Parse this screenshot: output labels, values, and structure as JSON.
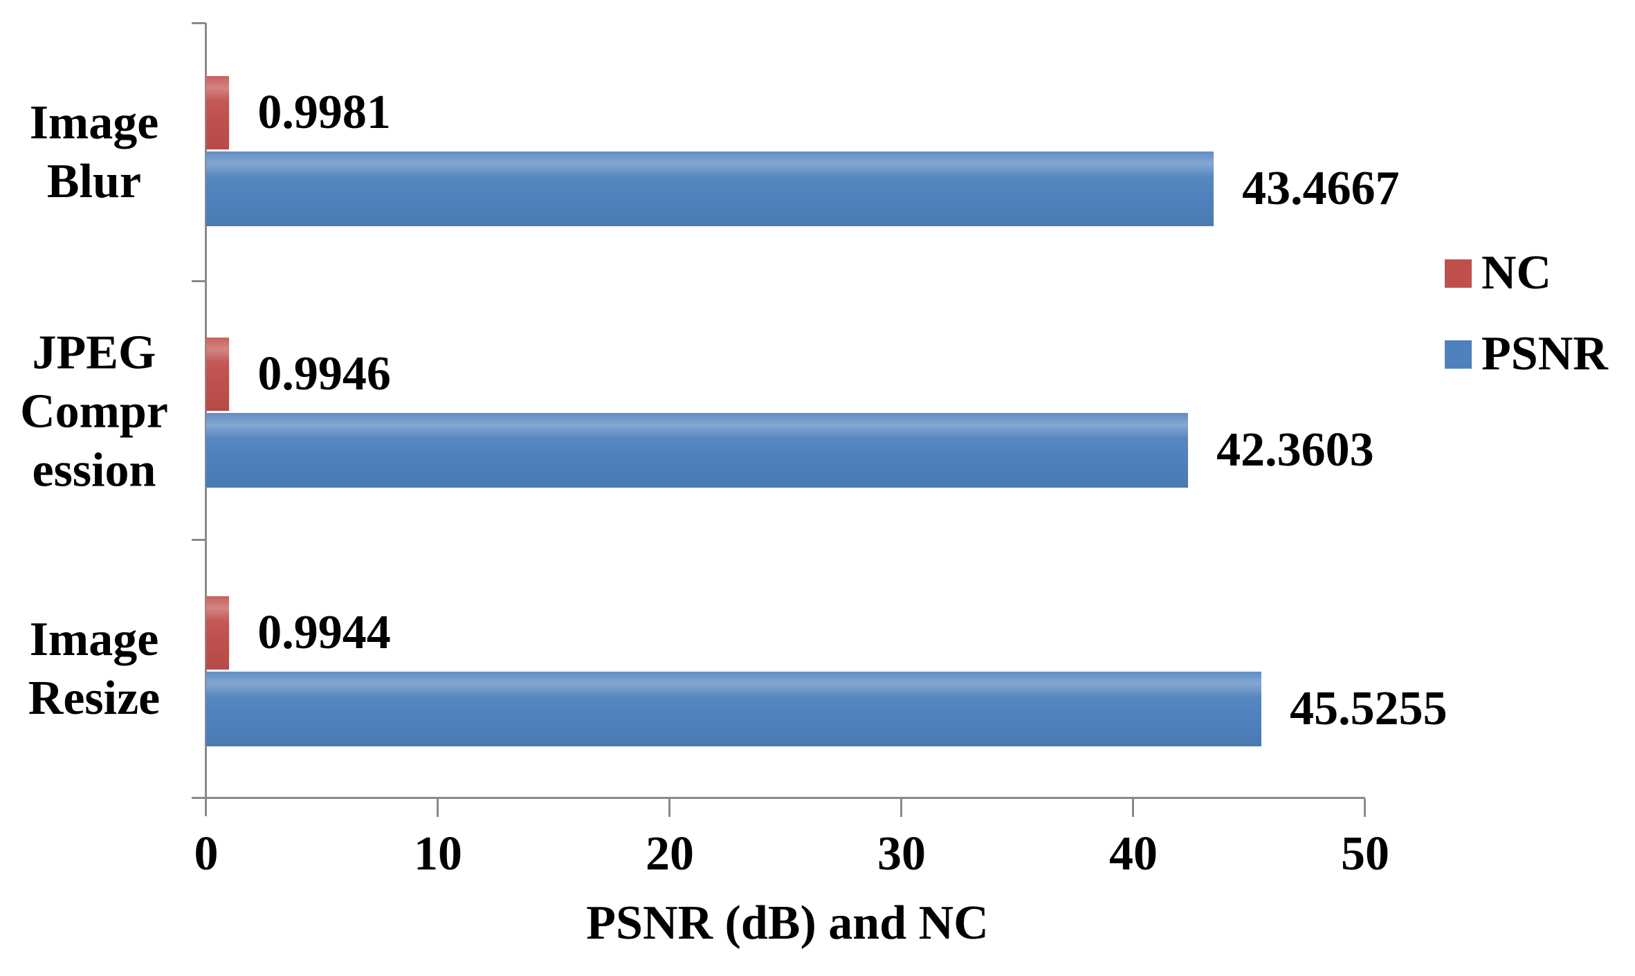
{
  "chart_data": {
    "type": "bar",
    "orientation": "horizontal",
    "title": "",
    "categories": [
      "Image Blur",
      "JPEG Compression",
      "Image Resize"
    ],
    "series": [
      {
        "name": "NC",
        "color": "#c0504d",
        "values": [
          0.9981,
          0.9946,
          0.9944
        ]
      },
      {
        "name": "PSNR",
        "color": "#4f81bd",
        "values": [
          43.4667,
          42.3603,
          45.5255
        ]
      }
    ],
    "xlabel": "PSNR (dB) and NC",
    "ylabel": "",
    "xlim": [
      0,
      50
    ],
    "xtick_labels": [
      "0",
      "10",
      "20",
      "30",
      "40",
      "50"
    ],
    "grid": false,
    "data_labels": true,
    "legend_position": "right"
  },
  "rows": [
    {
      "category_lines": [
        "Image",
        "Blur"
      ],
      "nc_label": "0.9981",
      "psnr_label": "43.4667"
    },
    {
      "category_lines": [
        "JPEG",
        "Compr",
        "ession"
      ],
      "nc_label": "0.9946",
      "psnr_label": "42.3603"
    },
    {
      "category_lines": [
        "Image",
        "Resize"
      ],
      "nc_label": "0.9944",
      "psnr_label": "45.5255"
    }
  ],
  "legend": {
    "items": [
      {
        "label": "NC",
        "color": "#c0504d"
      },
      {
        "label": "PSNR",
        "color": "#4f81bd"
      }
    ]
  },
  "colors": {
    "background": "#ffffff",
    "axis": "#898989",
    "text": "#000000",
    "nc_bar": "#c0504d",
    "psnr_bar": "#4f81bd"
  }
}
